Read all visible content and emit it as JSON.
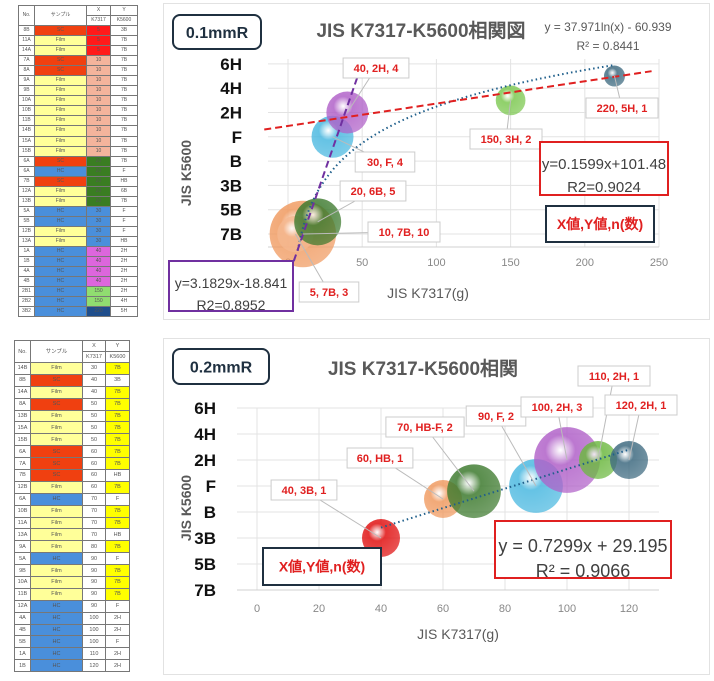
{
  "colors": {
    "SC": "#f04010",
    "Film": "#ffff99",
    "HC": "#4a8fdb",
    "yellow": "#ffff00",
    "eq_red": "#e02020",
    "eq_purple": "#7030a0",
    "note_border": "#1f3040",
    "label_red": "#e02020"
  },
  "table1": {
    "headers": {
      "no": "No.",
      "sample": "サンプル",
      "x": "X",
      "y": "Y",
      "x_sub": "K7317",
      "y_sub": "K5600"
    },
    "x_colors": {
      "5": "#ff1a1a",
      "10": "#f4b49c",
      "20": "#3a7d22",
      "30": "#4a8fdb",
      "40": "#dd66dd",
      "150": "#90dd70",
      "220": "#1f4e8c"
    },
    "rows": [
      [
        "8B",
        "SC",
        "5",
        "3B"
      ],
      [
        "11A",
        "Film",
        "5",
        "7B"
      ],
      [
        "14A",
        "Film",
        "5",
        "7B"
      ],
      [
        "7A",
        "SC",
        "10",
        "7B"
      ],
      [
        "8A",
        "SC",
        "10",
        "7B"
      ],
      [
        "9A",
        "Film",
        "10",
        "7B"
      ],
      [
        "9B",
        "Film",
        "10",
        "7B"
      ],
      [
        "10A",
        "Film",
        "10",
        "7B"
      ],
      [
        "10B",
        "Film",
        "10",
        "7B"
      ],
      [
        "11B",
        "Film",
        "10",
        "7B"
      ],
      [
        "14B",
        "Film",
        "10",
        "7B"
      ],
      [
        "15A",
        "Film",
        "10",
        "7B"
      ],
      [
        "15B",
        "Film",
        "10",
        "7B"
      ],
      [
        "6A",
        "SC",
        "20",
        "7B"
      ],
      [
        "6A",
        "HC",
        "20",
        "F"
      ],
      [
        "7B",
        "SC",
        "20",
        "HB"
      ],
      [
        "12A",
        "Film",
        "20",
        "6B"
      ],
      [
        "13B",
        "Film",
        "20",
        "7B"
      ],
      [
        "5A",
        "HC",
        "30",
        "F"
      ],
      [
        "5B",
        "HC",
        "30",
        "F"
      ],
      [
        "12B",
        "Film",
        "30",
        "F"
      ],
      [
        "13A",
        "Film",
        "30",
        "HB"
      ],
      [
        "1A",
        "HC",
        "40",
        "2H"
      ],
      [
        "1B",
        "HC",
        "40",
        "2H"
      ],
      [
        "4A",
        "HC",
        "40",
        "2H"
      ],
      [
        "4B",
        "HC",
        "40",
        "2H"
      ],
      [
        "2B1",
        "HC",
        "150",
        "2H"
      ],
      [
        "2B2",
        "HC",
        "150",
        "4H"
      ],
      [
        "3B2",
        "HC",
        "220",
        "5H"
      ]
    ]
  },
  "table2": {
    "headers": {
      "no": "No.",
      "sample": "サンプル",
      "x": "X",
      "y": "Y",
      "x_sub": "K7317",
      "y_sub": "K5600"
    },
    "rows": [
      [
        "14B",
        "Film",
        "30",
        "7B"
      ],
      [
        "8B",
        "SC",
        "40",
        "3B"
      ],
      [
        "14A",
        "Film",
        "40",
        "7B"
      ],
      [
        "8A",
        "SC",
        "50",
        "7B"
      ],
      [
        "13B",
        "Film",
        "50",
        "7B"
      ],
      [
        "15A",
        "Film",
        "50",
        "7B"
      ],
      [
        "15B",
        "Film",
        "50",
        "7B"
      ],
      [
        "6A",
        "SC",
        "60",
        "7B"
      ],
      [
        "7A",
        "SC",
        "60",
        "7B"
      ],
      [
        "7B",
        "SC",
        "60",
        "HB"
      ],
      [
        "12B",
        "Film",
        "60",
        "7B"
      ],
      [
        "6A",
        "HC",
        "70",
        "F"
      ],
      [
        "10B",
        "Film",
        "70",
        "7B"
      ],
      [
        "11A",
        "Film",
        "70",
        "7B"
      ],
      [
        "13A",
        "Film",
        "70",
        "HB"
      ],
      [
        "9A",
        "Film",
        "80",
        "7B"
      ],
      [
        "5A",
        "HC",
        "90",
        "F"
      ],
      [
        "9B",
        "Film",
        "90",
        "7B"
      ],
      [
        "10A",
        "Film",
        "90",
        "7B"
      ],
      [
        "11B",
        "Film",
        "90",
        "7B"
      ],
      [
        "12A",
        "HC",
        "90",
        "F"
      ],
      [
        "4A",
        "HC",
        "100",
        "2H"
      ],
      [
        "4B",
        "HC",
        "100",
        "2H"
      ],
      [
        "5B",
        "HC",
        "100",
        "F"
      ],
      [
        "1A",
        "HC",
        "110",
        "2H"
      ],
      [
        "1B",
        "HC",
        "120",
        "2H"
      ]
    ]
  },
  "chart_data": [
    {
      "type": "bubble",
      "tag": "0.1mmR",
      "title": "JIS K7317-K5600相関図",
      "xlabel": "JIS K7317(g)",
      "ylabel": "JIS K5600",
      "xlim": [
        0,
        250
      ],
      "x_ticks": [
        "0",
        "50",
        "100",
        "150",
        "200",
        "250"
      ],
      "y_categories": [
        "7B",
        "5B",
        "3B",
        "B",
        "F",
        "2H",
        "4H",
        "6H"
      ],
      "grid": true,
      "points": [
        {
          "x": 10,
          "y": "7B",
          "n": 10,
          "label": "10, 7B, 10",
          "color": "#f09a60"
        },
        {
          "x": 5,
          "y": "7B",
          "n": 3,
          "label": "5, 7B, 3",
          "color": "#f5b890"
        },
        {
          "x": 20,
          "y": "6B",
          "n": 5,
          "label": "20, 6B, 5",
          "color": "#3d7a2e"
        },
        {
          "x": 30,
          "y": "F",
          "n": 4,
          "label": "30, F, 4",
          "color": "#4ab8e0"
        },
        {
          "x": 40,
          "y": "2H",
          "n": 4,
          "label": "40, 2H, 4",
          "color": "#b060c8"
        },
        {
          "x": 150,
          "y": "3H",
          "n": 2,
          "label": "150, 3H, 2",
          "color": "#7cc850"
        },
        {
          "x": 220,
          "y": "5H",
          "n": 1,
          "label": "220, 5H, 1",
          "color": "#3e6a80"
        }
      ],
      "trendlines": [
        {
          "type": "log",
          "style": "dotted",
          "color": "#1f5f8b",
          "equation": "y = 37.971ln(x) - 60.939",
          "r2": "R² = 0.8441"
        },
        {
          "type": "linear",
          "style": "dashed",
          "color": "#e02020",
          "equation": "y=0.1599x+101.48",
          "r2": "R2=0.9024"
        },
        {
          "type": "linear",
          "style": "dashed",
          "color": "#7030a0",
          "equation": "y=3.1829x-18.841",
          "r2": "R2=0.8952"
        }
      ],
      "note": "X値,Y値,n(数)"
    },
    {
      "type": "bubble",
      "tag": "0.2mmR",
      "title": "JIS K7317-K5600相関",
      "xlabel": "JIS K7317(g)",
      "ylabel": "JIS K5600",
      "xlim": [
        0,
        130
      ],
      "x_ticks": [
        "0",
        "20",
        "40",
        "60",
        "80",
        "100",
        "120"
      ],
      "y_categories": [
        "7B",
        "5B",
        "3B",
        "B",
        "F",
        "2H",
        "4H",
        "6H"
      ],
      "grid": true,
      "points": [
        {
          "x": 40,
          "y": "3B",
          "n": 1,
          "label": "40, 3B, 1",
          "color": "#e01010"
        },
        {
          "x": 60,
          "y": "HB",
          "n": 1,
          "label": "60, HB, 1",
          "color": "#f09a60"
        },
        {
          "x": 70,
          "y": "HB-F",
          "n": 2,
          "label": "70, HB-F, 2",
          "color": "#3d7a2e"
        },
        {
          "x": 90,
          "y": "F",
          "n": 2,
          "label": "90, F, 2",
          "color": "#4ab8e0"
        },
        {
          "x": 100,
          "y": "2H",
          "n": 3,
          "label": "100, 2H, 3",
          "color": "#b060c8"
        },
        {
          "x": 110,
          "y": "2H",
          "n": 1,
          "label": "110, 2H, 1",
          "color": "#6cb840"
        },
        {
          "x": 120,
          "y": "2H",
          "n": 1,
          "label": "120, 2H, 1",
          "color": "#3e6a80"
        }
      ],
      "trendlines": [
        {
          "type": "linear",
          "style": "dotted",
          "color": "#1f5f8b",
          "equation": "y = 0.7299x + 29.195",
          "r2": "R² = 0.9066"
        }
      ],
      "note": "X値,Y値,n(数)"
    }
  ]
}
